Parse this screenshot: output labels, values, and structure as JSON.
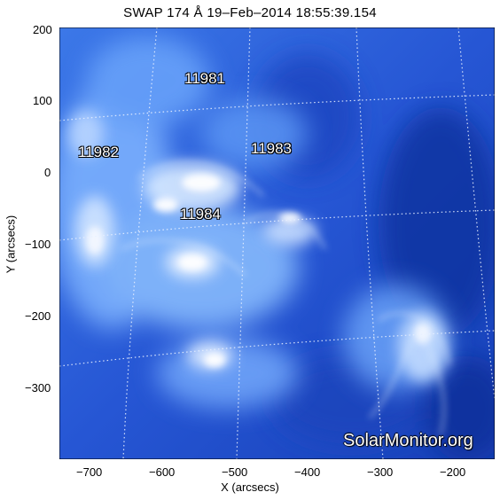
{
  "title": "SWAP 174 Å 19–Feb–2014 18:55:39.154",
  "xlabel": "X (arcsecs)",
  "ylabel": "Y (arcsecs)",
  "x_ticks": [
    "−700",
    "−600",
    "−500",
    "−400",
    "−300",
    "−200"
  ],
  "y_ticks": [
    "200",
    "100",
    "0",
    "−100",
    "−200",
    "−300"
  ],
  "regions": [
    {
      "label": "11981"
    },
    {
      "label": "11982"
    },
    {
      "label": "11983"
    },
    {
      "label": "11984"
    }
  ],
  "watermark": "SolarMonitor.org",
  "colors": {
    "background": "#2a5cd8",
    "bright": "#ffffff",
    "frame": "#000000"
  }
}
